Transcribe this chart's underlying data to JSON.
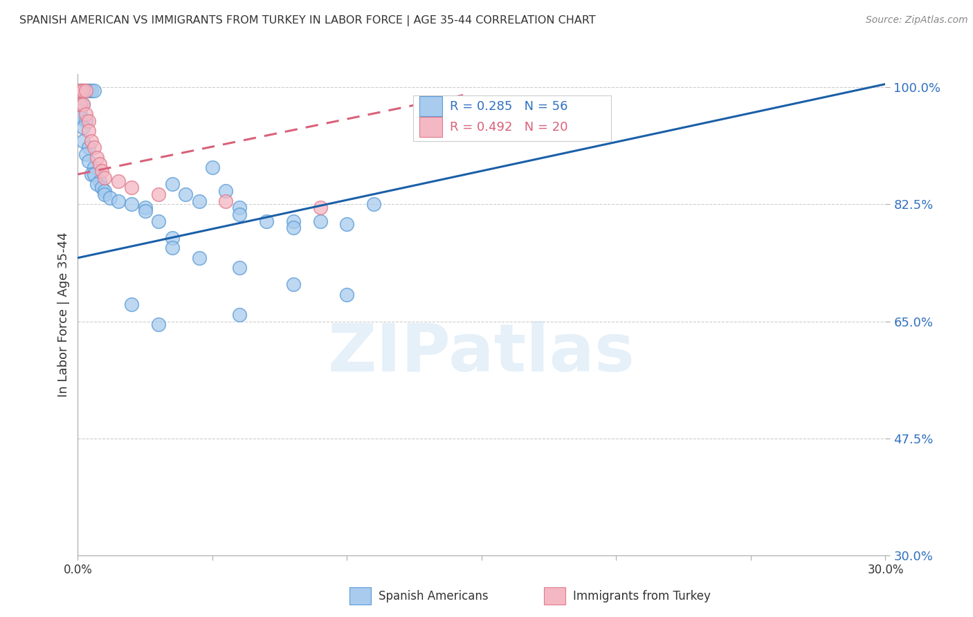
{
  "title": "SPANISH AMERICAN VS IMMIGRANTS FROM TURKEY IN LABOR FORCE | AGE 35-44 CORRELATION CHART",
  "source": "Source: ZipAtlas.com",
  "ylabel": "In Labor Force | Age 35-44",
  "xmin": 0.0,
  "xmax": 0.3,
  "ymin": 0.3,
  "ymax": 1.02,
  "yticks": [
    0.3,
    0.475,
    0.65,
    0.825,
    1.0
  ],
  "ytick_labels": [
    "30.0%",
    "47.5%",
    "65.0%",
    "82.5%",
    "100.0%"
  ],
  "xticks": [
    0.0,
    0.05,
    0.1,
    0.15,
    0.2,
    0.25,
    0.3
  ],
  "xtick_labels": [
    "0.0%",
    "",
    "",
    "",
    "",
    "",
    "30.0%"
  ],
  "legend_blue_r": "0.285",
  "legend_blue_n": "56",
  "legend_pink_r": "0.492",
  "legend_pink_n": "20",
  "legend_label_blue": "Spanish Americans",
  "legend_label_pink": "Immigrants from Turkey",
  "watermark": "ZIPatlas",
  "blue_fill": "#A8CBEE",
  "blue_edge": "#5B9BD5",
  "pink_fill": "#F4B8C4",
  "pink_edge": "#E07A8A",
  "trendline_blue": "#1A5FA8",
  "trendline_pink": "#D9617A",
  "blue_scatter": [
    [
      0.001,
      0.995
    ],
    [
      0.001,
      0.995
    ],
    [
      0.002,
      0.995
    ],
    [
      0.002,
      0.995
    ],
    [
      0.003,
      0.995
    ],
    [
      0.003,
      0.995
    ],
    [
      0.004,
      0.995
    ],
    [
      0.004,
      0.995
    ],
    [
      0.005,
      0.995
    ],
    [
      0.006,
      0.995
    ],
    [
      0.001,
      0.975
    ],
    [
      0.002,
      0.975
    ],
    [
      0.001,
      0.965
    ],
    [
      0.001,
      0.955
    ],
    [
      0.003,
      0.95
    ],
    [
      0.002,
      0.94
    ],
    [
      0.002,
      0.92
    ],
    [
      0.004,
      0.91
    ],
    [
      0.003,
      0.9
    ],
    [
      0.004,
      0.89
    ],
    [
      0.006,
      0.88
    ],
    [
      0.005,
      0.87
    ],
    [
      0.006,
      0.87
    ],
    [
      0.008,
      0.86
    ],
    [
      0.007,
      0.855
    ],
    [
      0.009,
      0.85
    ],
    [
      0.01,
      0.845
    ],
    [
      0.01,
      0.84
    ],
    [
      0.012,
      0.835
    ],
    [
      0.015,
      0.83
    ],
    [
      0.02,
      0.825
    ],
    [
      0.025,
      0.82
    ],
    [
      0.025,
      0.815
    ],
    [
      0.035,
      0.855
    ],
    [
      0.04,
      0.84
    ],
    [
      0.045,
      0.83
    ],
    [
      0.05,
      0.88
    ],
    [
      0.055,
      0.845
    ],
    [
      0.06,
      0.82
    ],
    [
      0.06,
      0.81
    ],
    [
      0.07,
      0.8
    ],
    [
      0.08,
      0.8
    ],
    [
      0.08,
      0.79
    ],
    [
      0.09,
      0.8
    ],
    [
      0.1,
      0.795
    ],
    [
      0.11,
      0.825
    ],
    [
      0.03,
      0.8
    ],
    [
      0.035,
      0.775
    ],
    [
      0.035,
      0.76
    ],
    [
      0.045,
      0.745
    ],
    [
      0.06,
      0.73
    ],
    [
      0.08,
      0.705
    ],
    [
      0.1,
      0.69
    ],
    [
      0.02,
      0.675
    ],
    [
      0.03,
      0.645
    ],
    [
      0.06,
      0.66
    ]
  ],
  "pink_scatter": [
    [
      0.001,
      0.995
    ],
    [
      0.001,
      0.995
    ],
    [
      0.002,
      0.995
    ],
    [
      0.003,
      0.995
    ],
    [
      0.001,
      0.975
    ],
    [
      0.002,
      0.975
    ],
    [
      0.003,
      0.96
    ],
    [
      0.004,
      0.95
    ],
    [
      0.004,
      0.935
    ],
    [
      0.005,
      0.92
    ],
    [
      0.006,
      0.91
    ],
    [
      0.007,
      0.895
    ],
    [
      0.008,
      0.885
    ],
    [
      0.009,
      0.875
    ],
    [
      0.01,
      0.865
    ],
    [
      0.015,
      0.86
    ],
    [
      0.02,
      0.85
    ],
    [
      0.03,
      0.84
    ],
    [
      0.055,
      0.83
    ],
    [
      0.09,
      0.82
    ]
  ],
  "blue_trendline_x": [
    0.0,
    0.3
  ],
  "blue_trendline_y": [
    0.745,
    1.005
  ],
  "pink_trendline_x": [
    0.0,
    0.145
  ],
  "pink_trendline_y": [
    0.87,
    0.99
  ]
}
